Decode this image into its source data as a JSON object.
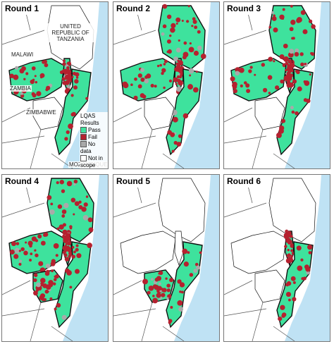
{
  "panels": [
    {
      "title": "Round 1"
    },
    {
      "title": "Round 2"
    },
    {
      "title": "Round 3"
    },
    {
      "title": "Round 4"
    },
    {
      "title": "Round 5"
    },
    {
      "title": "Round 6"
    }
  ],
  "country_labels": {
    "tanzania": "UNITED REPUBLIC OF TANZANIA",
    "malawi": "MALAWI",
    "zambia": "ZAMBIA",
    "zimbabwe": "ZIMBABWE",
    "mozambique": "MOZAMBIQUE"
  },
  "legend": {
    "title": "LQAS Results",
    "items": [
      {
        "label": "Pass",
        "color": "#3ee29d"
      },
      {
        "label": "Fail",
        "color": "#b5212f"
      },
      {
        "label": "No data",
        "color": "#a9a9a9"
      },
      {
        "label": "Not in scope",
        "color": "#ffffff"
      }
    ]
  }
}
